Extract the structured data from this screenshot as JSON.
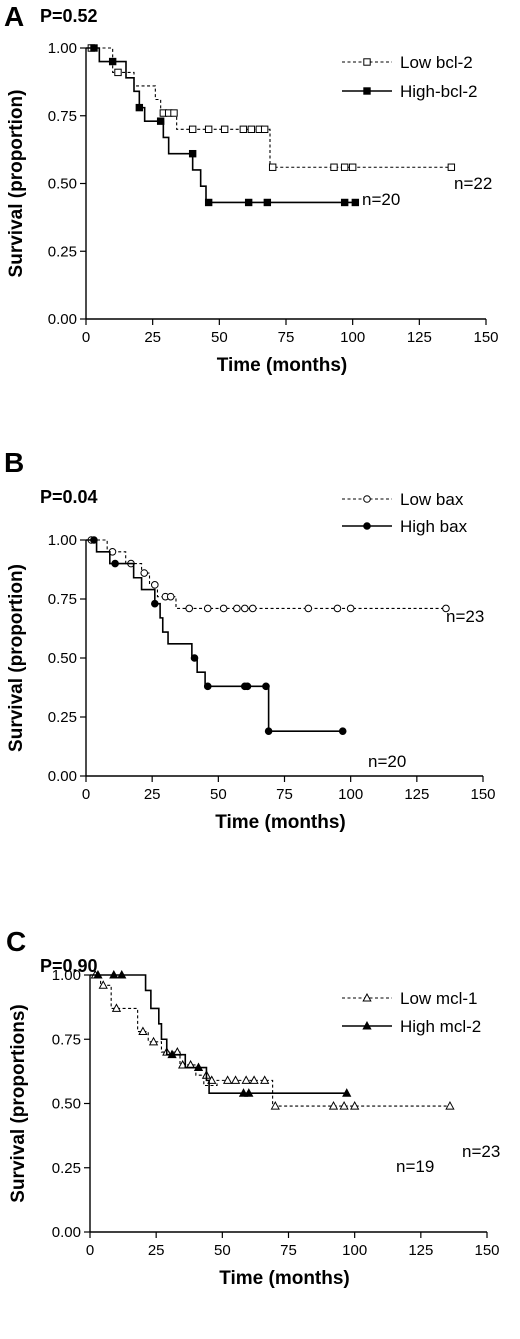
{
  "chart_data": [
    {
      "type": "line",
      "panel_label": "A",
      "p_value": "P=0.52",
      "xlabel": "Time (months)",
      "ylabel": "Survival (proportion)",
      "xlim": [
        0,
        150
      ],
      "ylim": [
        0,
        1
      ],
      "x_ticks": [
        "0",
        "25",
        "50",
        "75",
        "100",
        "125",
        "150"
      ],
      "y_ticks": [
        "0.00",
        "0.25",
        "0.50",
        "0.75",
        "1.00"
      ],
      "legend_position": "top-right",
      "series": [
        {
          "name": "Low bcl-2",
          "style": "dashed",
          "marker": "open-square",
          "steps": [
            [
              0,
              1.0
            ],
            [
              10,
              0.91
            ],
            [
              18,
              0.86
            ],
            [
              26,
              0.81
            ],
            [
              28,
              0.76
            ],
            [
              34,
              0.7
            ],
            [
              69,
              0.56
            ],
            [
              137,
              0.56
            ]
          ],
          "censored": [
            [
              2,
              1.0
            ],
            [
              12,
              0.91
            ],
            [
              29,
              0.76
            ],
            [
              31,
              0.76
            ],
            [
              33,
              0.76
            ],
            [
              40,
              0.7
            ],
            [
              46,
              0.7
            ],
            [
              52,
              0.7
            ],
            [
              59,
              0.7
            ],
            [
              62,
              0.7
            ],
            [
              65,
              0.7
            ],
            [
              67,
              0.7
            ],
            [
              70,
              0.56
            ],
            [
              93,
              0.56
            ],
            [
              97,
              0.56
            ],
            [
              100,
              0.56
            ],
            [
              137,
              0.56
            ]
          ],
          "n_label": "n=22"
        },
        {
          "name": "High-bcl-2",
          "style": "solid",
          "marker": "filled-square",
          "steps": [
            [
              0,
              1.0
            ],
            [
              5,
              0.95
            ],
            [
              15,
              0.89
            ],
            [
              18,
              0.84
            ],
            [
              20,
              0.78
            ],
            [
              22,
              0.73
            ],
            [
              29,
              0.67
            ],
            [
              31,
              0.61
            ],
            [
              40,
              0.55
            ],
            [
              43,
              0.49
            ],
            [
              45,
              0.43
            ],
            [
              101,
              0.43
            ]
          ],
          "censored": [
            [
              3,
              1.0
            ],
            [
              10,
              0.95
            ],
            [
              20,
              0.78
            ],
            [
              28,
              0.73
            ],
            [
              40,
              0.61
            ],
            [
              46,
              0.43
            ],
            [
              61,
              0.43
            ],
            [
              68,
              0.43
            ],
            [
              97,
              0.43
            ],
            [
              101,
              0.43
            ]
          ],
          "n_label": "n=20"
        }
      ]
    },
    {
      "type": "line",
      "panel_label": "B",
      "p_value": "P=0.04",
      "xlabel": "Time (months)",
      "ylabel": "Survival (proportion)",
      "xlim": [
        0,
        150
      ],
      "ylim": [
        0,
        1
      ],
      "x_ticks": [
        "0",
        "25",
        "50",
        "75",
        "100",
        "125",
        "150"
      ],
      "y_ticks": [
        "0.00",
        "0.25",
        "0.50",
        "0.75",
        "1.00"
      ],
      "legend_position": "top-right",
      "series": [
        {
          "name": "Low bax",
          "style": "dashed",
          "marker": "open-circle",
          "steps": [
            [
              0,
              1.0
            ],
            [
              8,
              0.95
            ],
            [
              15,
              0.9
            ],
            [
              21,
              0.86
            ],
            [
              24,
              0.81
            ],
            [
              27,
              0.76
            ],
            [
              34,
              0.71
            ],
            [
              136,
              0.71
            ]
          ],
          "censored": [
            [
              2,
              1.0
            ],
            [
              10,
              0.95
            ],
            [
              17,
              0.9
            ],
            [
              22,
              0.86
            ],
            [
              26,
              0.81
            ],
            [
              30,
              0.76
            ],
            [
              32,
              0.76
            ],
            [
              39,
              0.71
            ],
            [
              46,
              0.71
            ],
            [
              52,
              0.71
            ],
            [
              57,
              0.71
            ],
            [
              60,
              0.71
            ],
            [
              63,
              0.71
            ],
            [
              84,
              0.71
            ],
            [
              95,
              0.71
            ],
            [
              100,
              0.71
            ],
            [
              136,
              0.71
            ]
          ],
          "n_label": "n=23"
        },
        {
          "name": "High bax",
          "style": "solid",
          "marker": "filled-circle",
          "steps": [
            [
              0,
              1.0
            ],
            [
              4,
              0.95
            ],
            [
              9,
              0.9
            ],
            [
              18,
              0.84
            ],
            [
              21,
              0.79
            ],
            [
              26,
              0.73
            ],
            [
              28,
              0.67
            ],
            [
              29,
              0.61
            ],
            [
              31,
              0.56
            ],
            [
              40,
              0.5
            ],
            [
              42,
              0.44
            ],
            [
              45,
              0.38
            ],
            [
              69,
              0.19
            ],
            [
              97,
              0.19
            ]
          ],
          "censored": [
            [
              3,
              1.0
            ],
            [
              11,
              0.9
            ],
            [
              26,
              0.73
            ],
            [
              41,
              0.5
            ],
            [
              46,
              0.38
            ],
            [
              60,
              0.38
            ],
            [
              61,
              0.38
            ],
            [
              68,
              0.38
            ],
            [
              69,
              0.19
            ],
            [
              97,
              0.19
            ]
          ],
          "n_label": "n=20"
        }
      ]
    },
    {
      "type": "line",
      "panel_label": "C",
      "p_value": "P=0.90",
      "xlabel": "Time (months)",
      "ylabel": "Survival (proportions)",
      "xlim": [
        0,
        150
      ],
      "ylim": [
        0,
        1
      ],
      "x_ticks": [
        "0",
        "25",
        "50",
        "75",
        "100",
        "125",
        "150"
      ],
      "y_ticks": [
        "0.00",
        "0.25",
        "0.50",
        "0.75",
        "1.00"
      ],
      "legend_position": "top-right",
      "series": [
        {
          "name": "Low mcl-1",
          "style": "dashed",
          "marker": "open-triangle",
          "steps": [
            [
              0,
              1.0
            ],
            [
              4,
              0.96
            ],
            [
              8,
              0.87
            ],
            [
              18,
              0.78
            ],
            [
              22,
              0.74
            ],
            [
              27,
              0.7
            ],
            [
              34,
              0.65
            ],
            [
              40,
              0.61
            ],
            [
              43,
              0.57
            ],
            [
              48,
              0.59
            ],
            [
              69,
              0.49
            ],
            [
              136,
              0.49
            ]
          ],
          "censored": [
            [
              2,
              1.0
            ],
            [
              5,
              0.96
            ],
            [
              10,
              0.87
            ],
            [
              20,
              0.78
            ],
            [
              24,
              0.74
            ],
            [
              29,
              0.7
            ],
            [
              33,
              0.7
            ],
            [
              35,
              0.65
            ],
            [
              38,
              0.65
            ],
            [
              44,
              0.61
            ],
            [
              46,
              0.59
            ],
            [
              52,
              0.59
            ],
            [
              55,
              0.59
            ],
            [
              59,
              0.59
            ],
            [
              62,
              0.59
            ],
            [
              66,
              0.59
            ],
            [
              70,
              0.49
            ],
            [
              92,
              0.49
            ],
            [
              96,
              0.49
            ],
            [
              100,
              0.49
            ],
            [
              136,
              0.49
            ]
          ],
          "n_label": "n=23"
        },
        {
          "name": "High mcl-2",
          "style": "solid",
          "marker": "filled-triangle",
          "steps": [
            [
              0,
              1.0
            ],
            [
              21,
              0.94
            ],
            [
              23,
              0.87
            ],
            [
              26,
              0.81
            ],
            [
              27,
              0.75
            ],
            [
              29,
              0.69
            ],
            [
              36,
              0.64
            ],
            [
              44,
              0.59
            ],
            [
              45,
              0.54
            ],
            [
              97,
              0.54
            ]
          ],
          "censored": [
            [
              3,
              1.0
            ],
            [
              9,
              1.0
            ],
            [
              12,
              1.0
            ],
            [
              31,
              0.69
            ],
            [
              41,
              0.64
            ],
            [
              58,
              0.54
            ],
            [
              60,
              0.54
            ],
            [
              97,
              0.54
            ]
          ],
          "n_label": "n=19"
        }
      ]
    }
  ]
}
